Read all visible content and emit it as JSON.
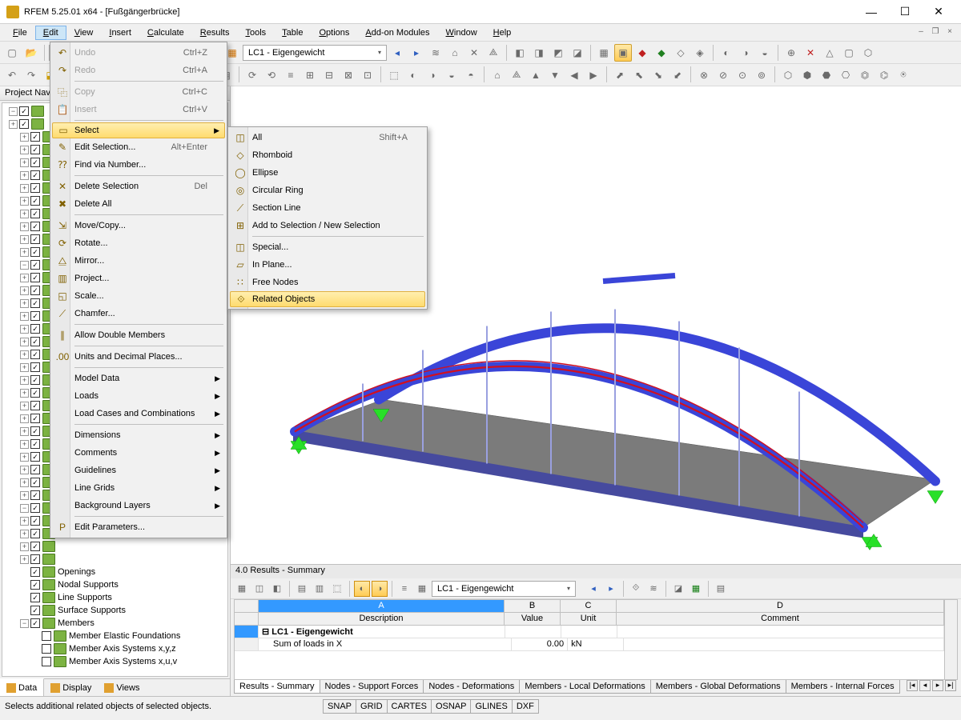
{
  "title": "RFEM 5.25.01 x64 - [Fußgängerbrücke]",
  "menu": {
    "items": [
      "File",
      "Edit",
      "View",
      "Insert",
      "Calculate",
      "Results",
      "Tools",
      "Table",
      "Options",
      "Add-on Modules",
      "Window",
      "Help"
    ],
    "active_index": 1
  },
  "loadcase_box": "LC1 - Eigengewicht",
  "nav": {
    "title": "Project Nav",
    "tree_visible": [
      "Openings",
      "Nodal Supports",
      "Line Supports",
      "Surface Supports",
      "Members",
      "Member Elastic Foundations",
      "Member Axis Systems x,y,z",
      "Member Axis Systems x,u,v"
    ],
    "tabs": [
      "Data",
      "Display",
      "Views"
    ],
    "tab_icons": [
      "◧",
      "◨",
      "◪"
    ]
  },
  "edit_menu": {
    "items": [
      {
        "label": "Undo",
        "sc": "Ctrl+Z",
        "disabled": true,
        "ico": "↶"
      },
      {
        "label": "Redo",
        "sc": "Ctrl+A",
        "disabled": true,
        "ico": "↷"
      },
      {
        "sep": true
      },
      {
        "label": "Copy",
        "sc": "Ctrl+C",
        "disabled": true,
        "ico": "⿻"
      },
      {
        "label": "Insert",
        "sc": "Ctrl+V",
        "disabled": true,
        "ico": "📋"
      },
      {
        "sep": true
      },
      {
        "label": "Select",
        "arrow": true,
        "highlight": true,
        "ico": "▭"
      },
      {
        "label": "Edit Selection...",
        "sc": "Alt+Enter",
        "ico": "✎"
      },
      {
        "label": "Find via Number...",
        "ico": "⁇"
      },
      {
        "sep": true
      },
      {
        "label": "Delete Selection",
        "sc": "Del",
        "ico": "✕"
      },
      {
        "label": "Delete All",
        "ico": "✖"
      },
      {
        "sep": true
      },
      {
        "label": "Move/Copy...",
        "ico": "⇲"
      },
      {
        "label": "Rotate...",
        "ico": "⟳"
      },
      {
        "label": "Mirror...",
        "ico": "⧋"
      },
      {
        "label": "Project...",
        "ico": "▥"
      },
      {
        "label": "Scale...",
        "ico": "◱"
      },
      {
        "label": "Chamfer...",
        "ico": "⟋"
      },
      {
        "sep": true
      },
      {
        "label": "Allow Double Members",
        "ico": "∥"
      },
      {
        "sep": true
      },
      {
        "label": "Units and Decimal Places...",
        "ico": ".00"
      },
      {
        "sep": true
      },
      {
        "label": "Model Data",
        "arrow": true
      },
      {
        "label": "Loads",
        "arrow": true
      },
      {
        "label": "Load Cases and Combinations",
        "arrow": true
      },
      {
        "sep": true
      },
      {
        "label": "Dimensions",
        "arrow": true
      },
      {
        "label": "Comments",
        "arrow": true
      },
      {
        "label": "Guidelines",
        "arrow": true
      },
      {
        "label": "Line Grids",
        "arrow": true
      },
      {
        "label": "Background Layers",
        "arrow": true
      },
      {
        "sep": true
      },
      {
        "label": "Edit Parameters...",
        "ico": "P"
      }
    ]
  },
  "select_submenu": {
    "items": [
      {
        "label": "All",
        "sc": "Shift+A",
        "ico": "◫"
      },
      {
        "label": "Rhomboid",
        "ico": "◇"
      },
      {
        "label": "Ellipse",
        "ico": "◯"
      },
      {
        "label": "Circular Ring",
        "ico": "◎"
      },
      {
        "label": "Section Line",
        "ico": "⟋"
      },
      {
        "label": "Add to Selection / New Selection",
        "ico": "⊞"
      },
      {
        "sep": true
      },
      {
        "label": "Special...",
        "ico": "◫"
      },
      {
        "label": "In Plane...",
        "ico": "▱"
      },
      {
        "label": "Free Nodes",
        "ico": "∷"
      },
      {
        "label": "Related Objects",
        "highlight": true,
        "ico": "⟐"
      }
    ]
  },
  "results": {
    "title": "4.0 Results - Summary",
    "lc": "LC1 - Eigengewicht",
    "cols_letters": [
      "",
      "A",
      "B",
      "C",
      "D"
    ],
    "cols": [
      "",
      "Description",
      "Value",
      "Unit",
      "Comment"
    ],
    "row1": {
      "head": "",
      "desc": "LC1 - Eigengewicht"
    },
    "row2": {
      "head": "",
      "desc": "Sum of loads in X",
      "value": "0.00",
      "unit": "kN"
    },
    "tabs": [
      "Results - Summary",
      "Nodes - Support Forces",
      "Nodes - Deformations",
      "Members - Local Deformations",
      "Members - Global Deformations",
      "Members - Internal Forces"
    ]
  },
  "status": {
    "text": "Selects additional related objects of selected objects.",
    "boxes": [
      "SNAP",
      "GRID",
      "CARTES",
      "OSNAP",
      "GLINES",
      "DXF"
    ]
  },
  "bridge_colors": {
    "arch": "#3a45d8",
    "deck": "#7b7b7b",
    "deck_side": "#464a9e",
    "selected": "#d01020",
    "support": "#28e028",
    "hanger": "#9aa0e0"
  }
}
